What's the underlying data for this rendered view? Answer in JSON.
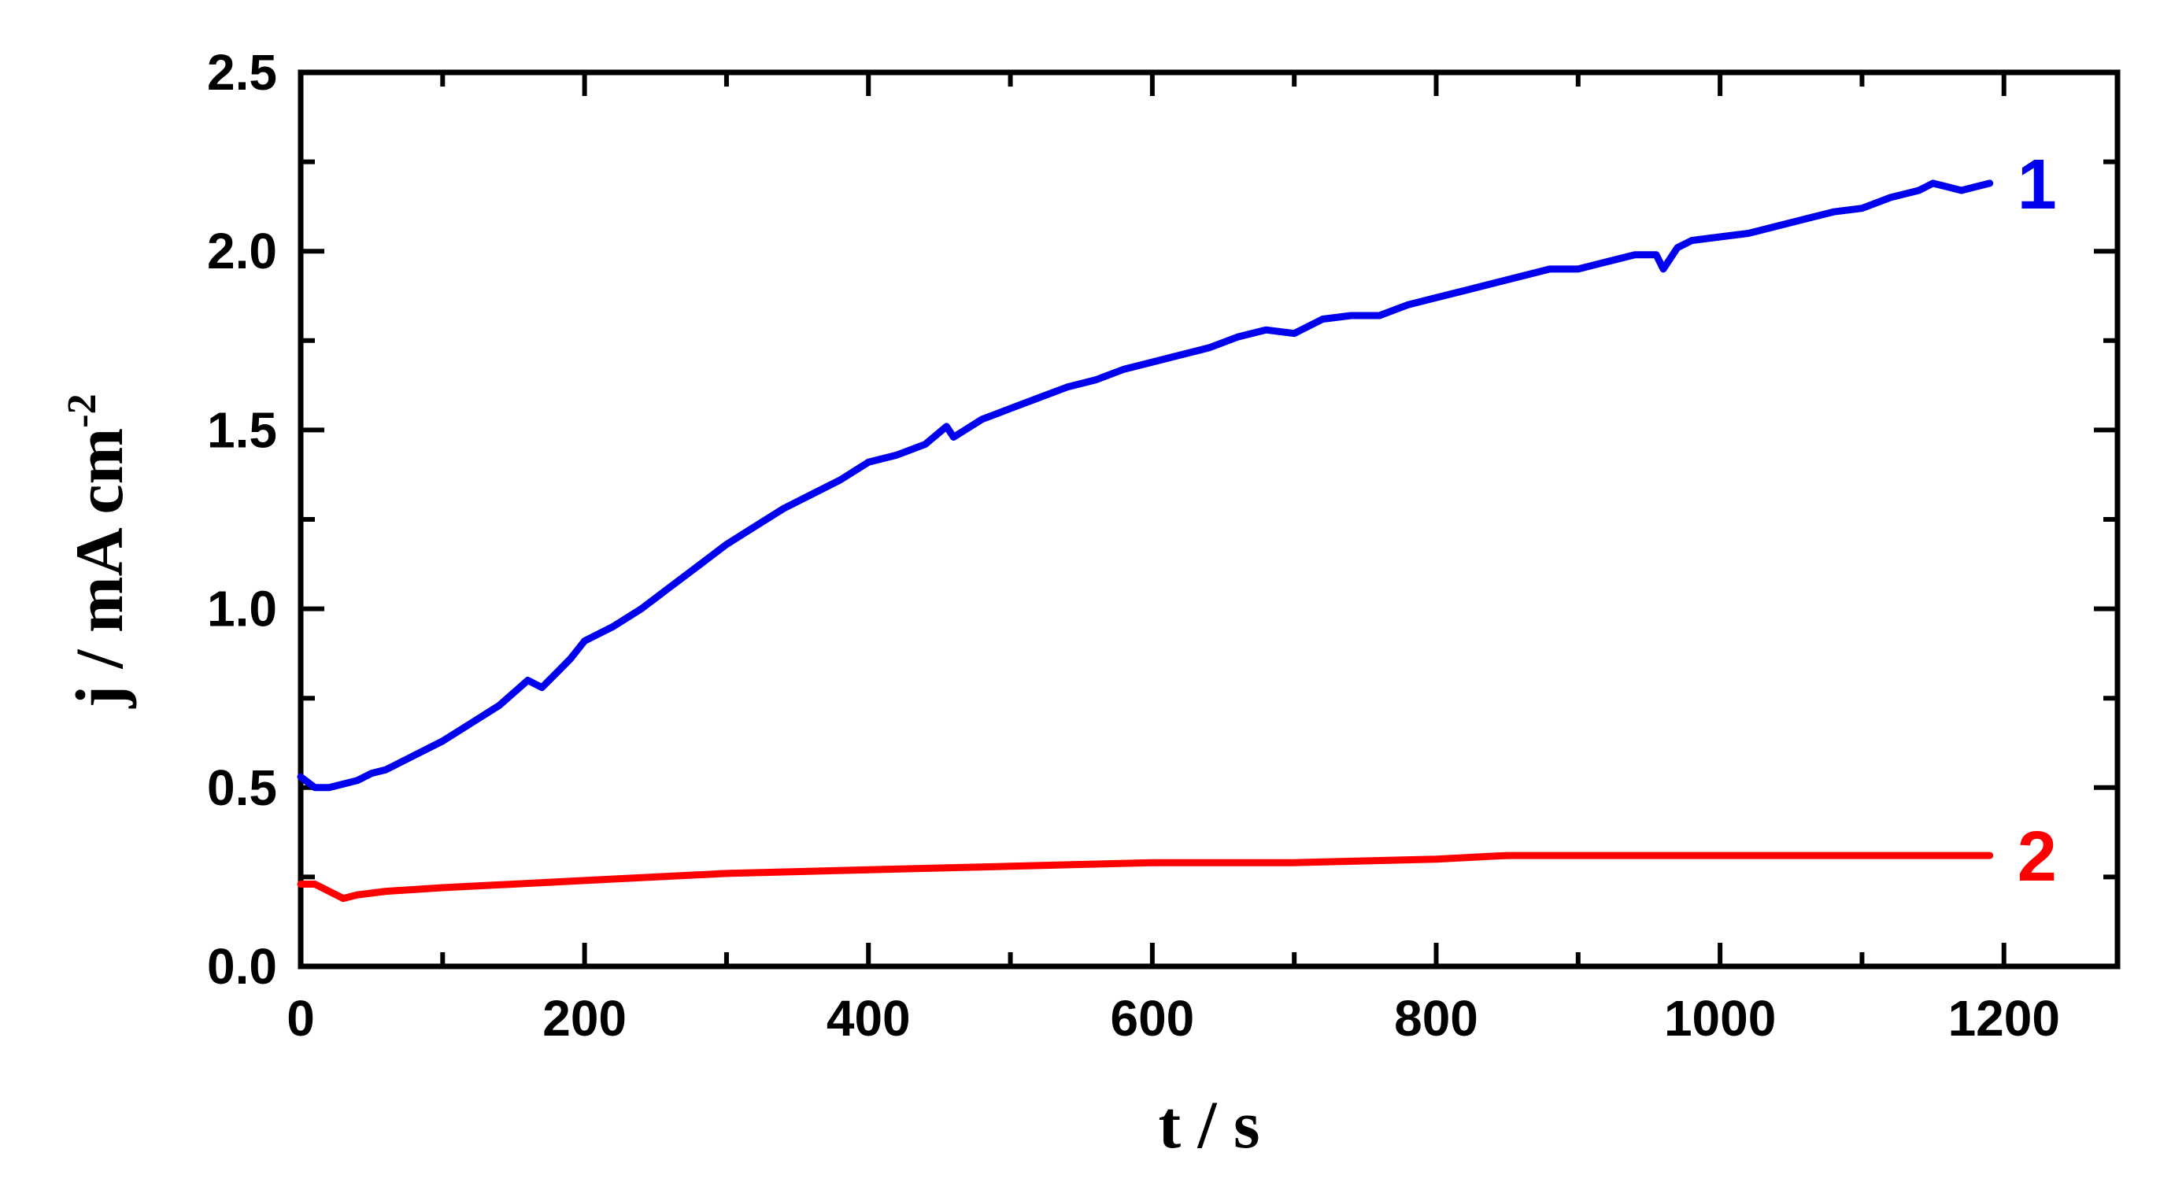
{
  "chart_data": {
    "type": "line",
    "title": "",
    "xlabel": "t / s",
    "ylabel_main": "j / mA cm",
    "ylabel_superscript": "-2",
    "xlim": [
      0,
      1280
    ],
    "ylim": [
      0,
      2.5
    ],
    "x_ticks": [
      0,
      200,
      400,
      600,
      800,
      1000,
      1200
    ],
    "x_tick_labels": [
      "0",
      "200",
      "400",
      "600",
      "800",
      "1000",
      "1200"
    ],
    "y_ticks": [
      0.0,
      0.5,
      1.0,
      1.5,
      2.0,
      2.5
    ],
    "y_tick_labels": [
      "0.0",
      "0.5",
      "1.0",
      "1.5",
      "2.0",
      "2.5"
    ],
    "grid": false,
    "series": [
      {
        "name": "1",
        "color": "#0000ee",
        "x": [
          0,
          10,
          20,
          30,
          40,
          50,
          60,
          80,
          100,
          120,
          140,
          160,
          170,
          180,
          190,
          200,
          220,
          240,
          260,
          280,
          300,
          320,
          340,
          360,
          380,
          400,
          420,
          440,
          455,
          460,
          480,
          500,
          520,
          540,
          560,
          580,
          600,
          620,
          640,
          660,
          680,
          700,
          720,
          740,
          760,
          780,
          800,
          820,
          840,
          860,
          880,
          900,
          920,
          940,
          955,
          960,
          970,
          980,
          1000,
          1020,
          1040,
          1060,
          1080,
          1100,
          1120,
          1140,
          1150,
          1160,
          1170,
          1180,
          1190
        ],
        "y": [
          0.53,
          0.5,
          0.5,
          0.51,
          0.52,
          0.54,
          0.55,
          0.59,
          0.63,
          0.68,
          0.73,
          0.8,
          0.78,
          0.82,
          0.86,
          0.91,
          0.95,
          1.0,
          1.06,
          1.12,
          1.18,
          1.23,
          1.28,
          1.32,
          1.36,
          1.41,
          1.43,
          1.46,
          1.51,
          1.48,
          1.53,
          1.56,
          1.59,
          1.62,
          1.64,
          1.67,
          1.69,
          1.71,
          1.73,
          1.76,
          1.78,
          1.77,
          1.81,
          1.82,
          1.82,
          1.85,
          1.87,
          1.89,
          1.91,
          1.93,
          1.95,
          1.95,
          1.97,
          1.99,
          1.99,
          1.95,
          2.01,
          2.03,
          2.04,
          2.05,
          2.07,
          2.09,
          2.11,
          2.12,
          2.15,
          2.17,
          2.19,
          2.18,
          2.17,
          2.18,
          2.19
        ]
      },
      {
        "name": "2",
        "color": "#ff0000",
        "x": [
          0,
          10,
          20,
          30,
          40,
          60,
          100,
          200,
          300,
          400,
          500,
          600,
          700,
          800,
          850,
          900,
          1000,
          1100,
          1190
        ],
        "y": [
          0.23,
          0.23,
          0.21,
          0.19,
          0.2,
          0.21,
          0.22,
          0.24,
          0.26,
          0.27,
          0.28,
          0.29,
          0.29,
          0.3,
          0.31,
          0.31,
          0.31,
          0.31,
          0.31
        ]
      }
    ]
  }
}
